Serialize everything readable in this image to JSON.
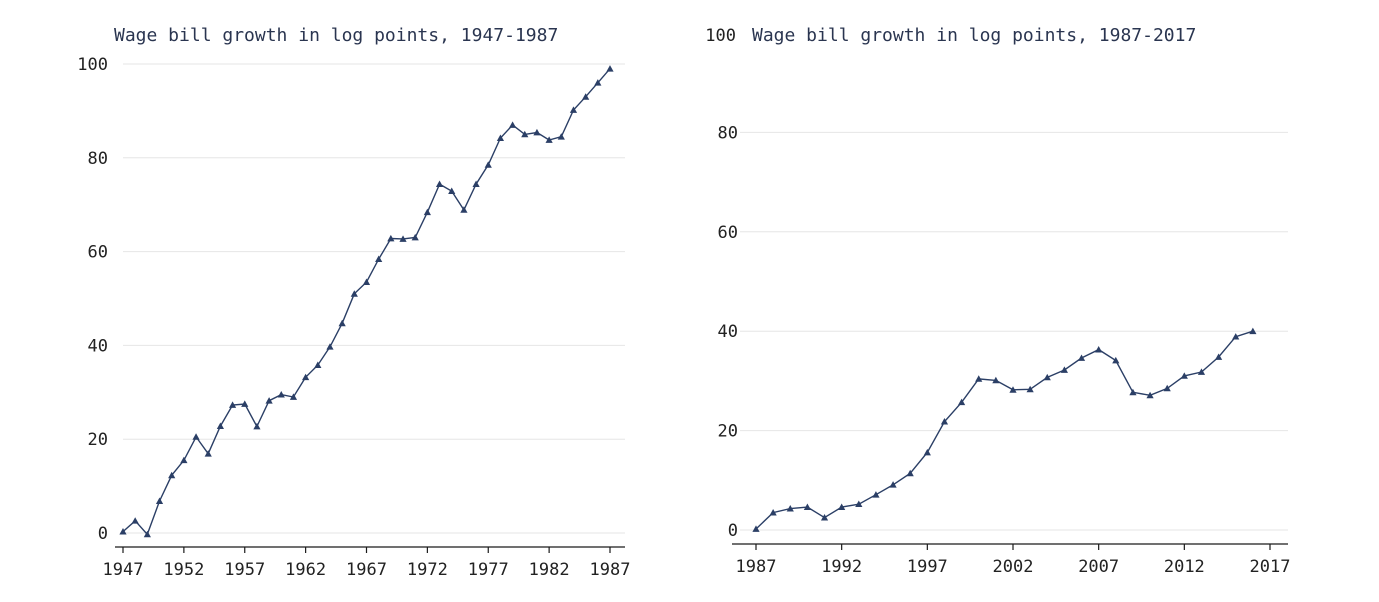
{
  "chart_data": [
    {
      "type": "line",
      "title": "Wage bill growth in log points, 1947-1987",
      "xlabel": "",
      "ylabel": "",
      "xlim": [
        1947,
        1987
      ],
      "ylim": [
        0,
        100
      ],
      "x_ticks": [
        1947,
        1952,
        1957,
        1962,
        1967,
        1972,
        1977,
        1982,
        1987
      ],
      "y_ticks": [
        0,
        20,
        40,
        60,
        80,
        100
      ],
      "grid": true,
      "marker": "triangle",
      "color": "#2b3f66",
      "x": [
        1947,
        1948,
        1949,
        1950,
        1951,
        1952,
        1953,
        1954,
        1955,
        1956,
        1957,
        1958,
        1959,
        1960,
        1961,
        1962,
        1963,
        1964,
        1965,
        1966,
        1967,
        1968,
        1969,
        1970,
        1971,
        1972,
        1973,
        1974,
        1975,
        1976,
        1977,
        1978,
        1979,
        1980,
        1981,
        1982,
        1983,
        1984,
        1985,
        1986,
        1987
      ],
      "values": [
        0.3,
        2.6,
        -0.3,
        6.8,
        12.3,
        15.5,
        20.5,
        16.9,
        22.8,
        27.3,
        27.5,
        22.7,
        28.2,
        29.5,
        29.0,
        33.2,
        35.8,
        39.7,
        44.7,
        51.0,
        53.5,
        58.4,
        62.8,
        62.7,
        63.0,
        68.4,
        74.4,
        72.9,
        68.9,
        74.4,
        78.5,
        84.2,
        87.0,
        85.0,
        85.4,
        83.8,
        84.5,
        90.2,
        93.0,
        96.0,
        99.0
      ]
    },
    {
      "type": "line",
      "title": "Wage bill growth in log points, 1987-2017",
      "xlabel": "",
      "ylabel": "",
      "xlim": [
        1987,
        2017
      ],
      "ylim": [
        0,
        100
      ],
      "x_ticks": [
        1987,
        1992,
        1997,
        2002,
        2007,
        2012,
        2017
      ],
      "y_ticks": [
        0,
        20,
        40,
        60,
        80,
        100
      ],
      "grid": true,
      "marker": "triangle",
      "color": "#2b3f66",
      "x": [
        1987,
        1988,
        1989,
        1990,
        1991,
        1992,
        1993,
        1994,
        1995,
        1996,
        1997,
        1998,
        1999,
        2000,
        2001,
        2002,
        2003,
        2004,
        2005,
        2006,
        2007,
        2008,
        2009,
        2010,
        2011,
        2012,
        2013,
        2014,
        2015,
        2016
      ],
      "values": [
        0.2,
        3.5,
        4.3,
        4.6,
        2.5,
        4.6,
        5.2,
        7.1,
        9.1,
        11.4,
        15.6,
        21.8,
        25.7,
        30.4,
        30.1,
        28.2,
        28.3,
        30.7,
        32.2,
        34.6,
        36.3,
        34.1,
        27.7,
        27.1,
        28.5,
        31.0,
        31.8,
        34.8,
        38.9,
        40.0
      ]
    }
  ]
}
